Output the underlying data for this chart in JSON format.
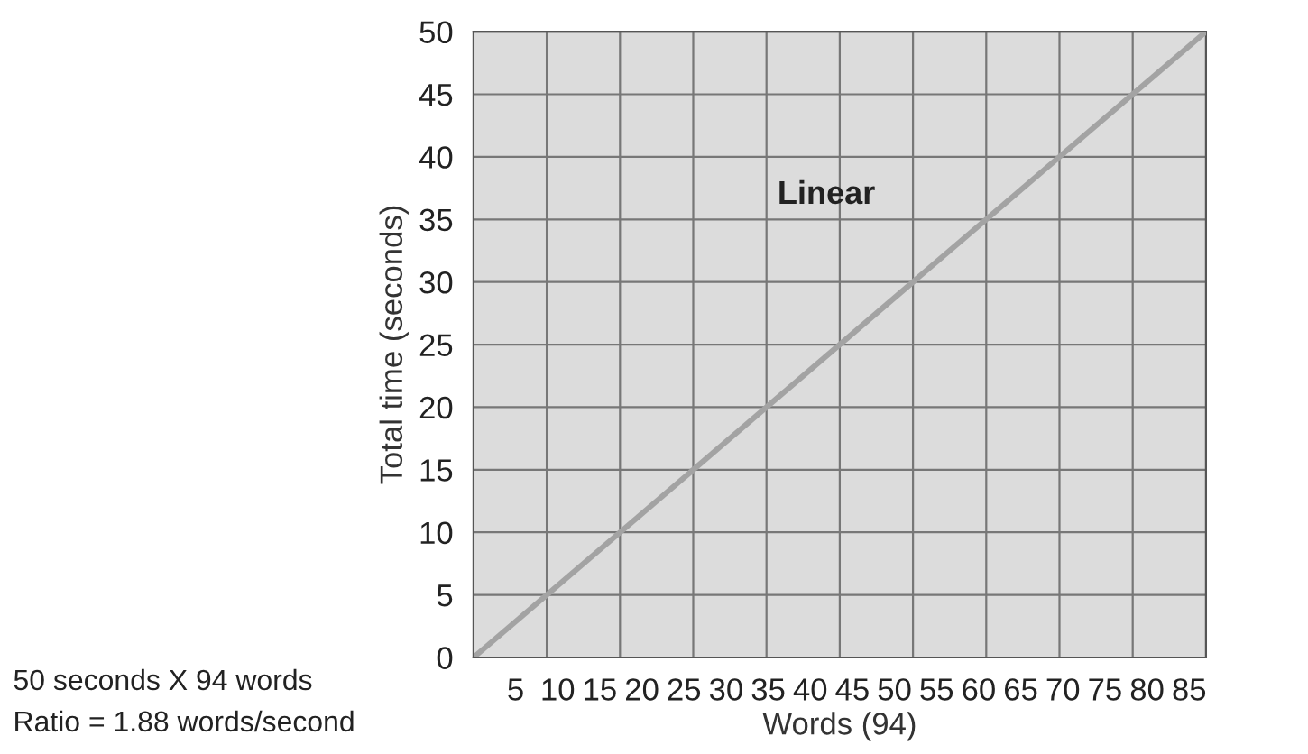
{
  "chart_data": {
    "type": "line",
    "xlabel": "Words (94)",
    "ylabel": "Total time (seconds)",
    "x": [
      0,
      87
    ],
    "series": [
      {
        "color": "#a3a3a3",
        "values": [
          0,
          50
        ]
      }
    ],
    "xlim": [
      0,
      87
    ],
    "ylim": [
      0,
      50
    ],
    "xticks": [
      5,
      10,
      15,
      20,
      25,
      30,
      35,
      40,
      45,
      50,
      55,
      60,
      65,
      70,
      75,
      80,
      85,
      {
        "value": 8.7,
        "label": null
      },
      {
        "value": 17.4,
        "label": null
      },
      {
        "value": 26.1,
        "label": null
      },
      {
        "value": 34.8,
        "label": null
      },
      {
        "value": 43.5,
        "label": null
      },
      {
        "value": 52.2,
        "label": null
      },
      {
        "value": 60.9,
        "label": null
      },
      {
        "value": 69.6,
        "label": null
      },
      {
        "value": 78.3,
        "label": null
      }
    ],
    "yticks": [
      0,
      5,
      10,
      15,
      20,
      25,
      30,
      35,
      40,
      45,
      50
    ],
    "grid": true,
    "marker": "none",
    "line_style": "solid",
    "annotations": [
      "Linear",
      "50 seconds X 94 words",
      "Ratio = 1.88 words/second"
    ]
  }
}
